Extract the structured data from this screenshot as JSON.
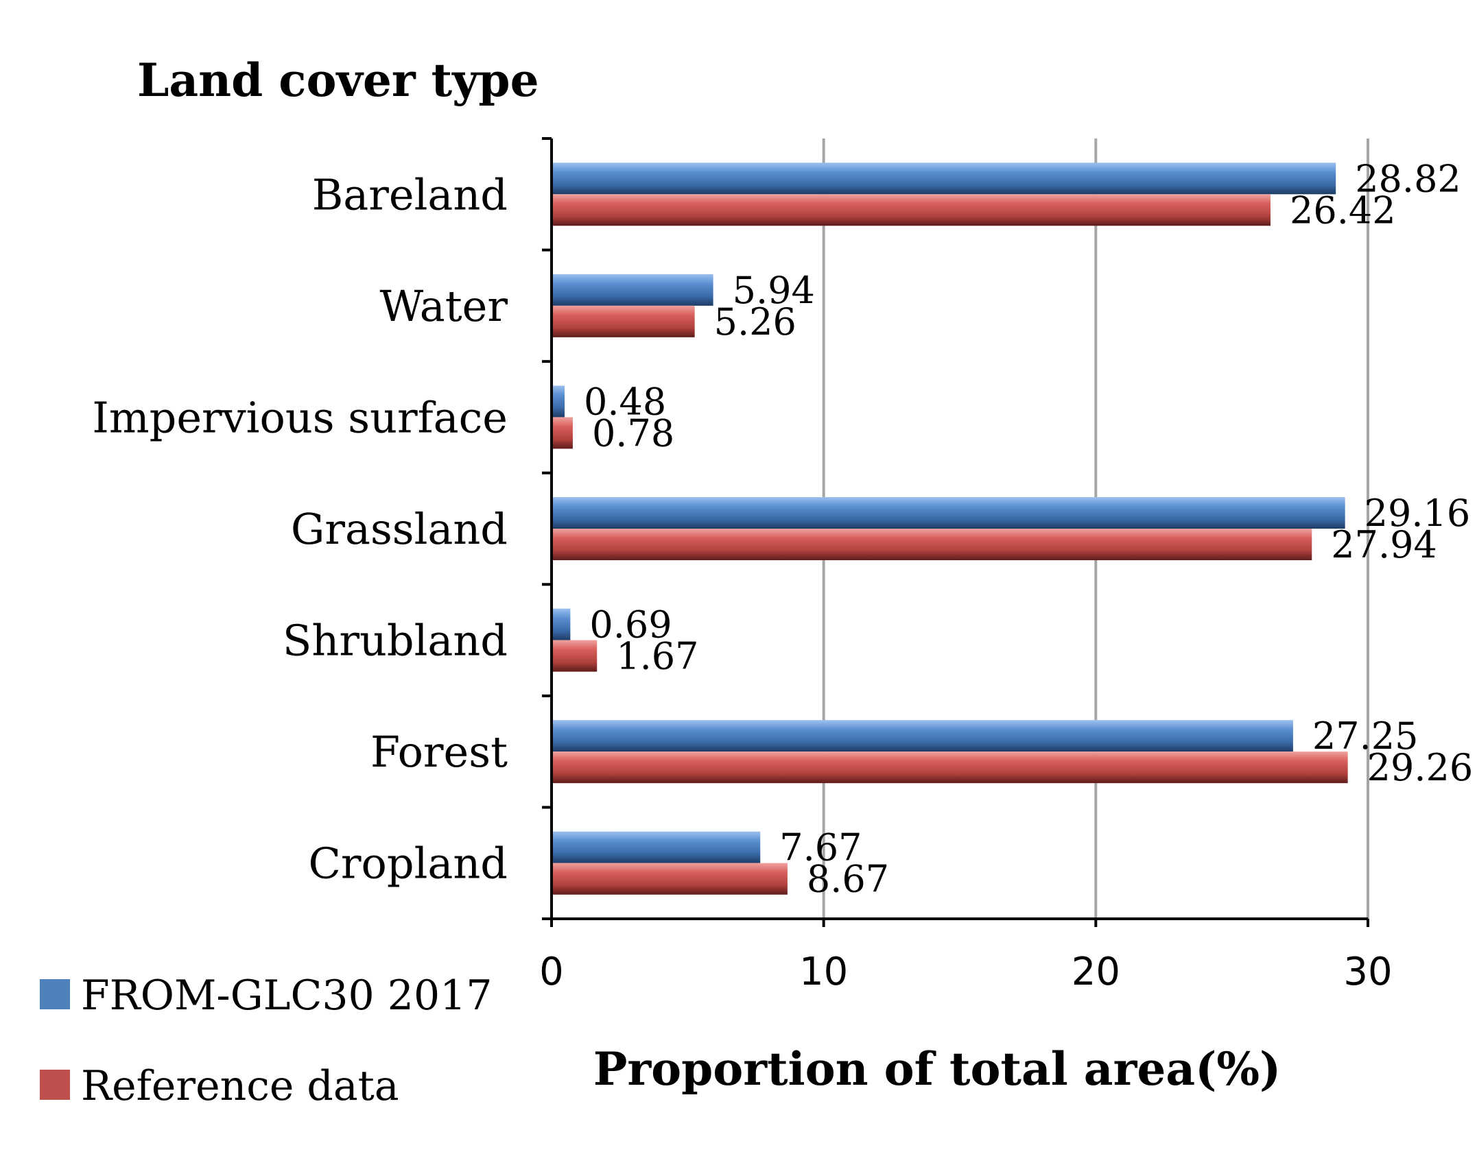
{
  "chart_data": {
    "type": "bar",
    "orientation": "horizontal",
    "title": "",
    "ylabel": "Land cover type",
    "xlabel": "Proportion of total area(%)",
    "categories": [
      "Bareland",
      "Water",
      "Impervious surface",
      "Grassland",
      "Shrubland",
      "Forest",
      "Cropland"
    ],
    "series": [
      {
        "name": "FROM-GLC30 2017",
        "color": "#4f81bd",
        "values": [
          28.82,
          5.94,
          0.48,
          29.16,
          0.69,
          27.25,
          7.67
        ],
        "labels": [
          "28.82",
          "5.94",
          "0.48",
          "29.16",
          "0.69",
          "27.25",
          "7.67"
        ]
      },
      {
        "name": "Reference data",
        "color": "#c0504d",
        "values": [
          26.42,
          5.26,
          0.78,
          27.94,
          1.67,
          29.26,
          8.67
        ],
        "labels": [
          "26.42",
          "5.26",
          "0.78",
          "27.94",
          "1.67",
          "29.26",
          "8.67"
        ]
      }
    ],
    "xlim": [
      0,
      30
    ],
    "xticks": [
      0,
      10,
      20,
      30
    ],
    "xtick_labels": [
      "0",
      "10",
      "20",
      "30"
    ],
    "grid": true,
    "legend": {
      "position": "bottom-left",
      "entries": [
        "FROM-GLC30 2017",
        "Reference data"
      ]
    }
  }
}
